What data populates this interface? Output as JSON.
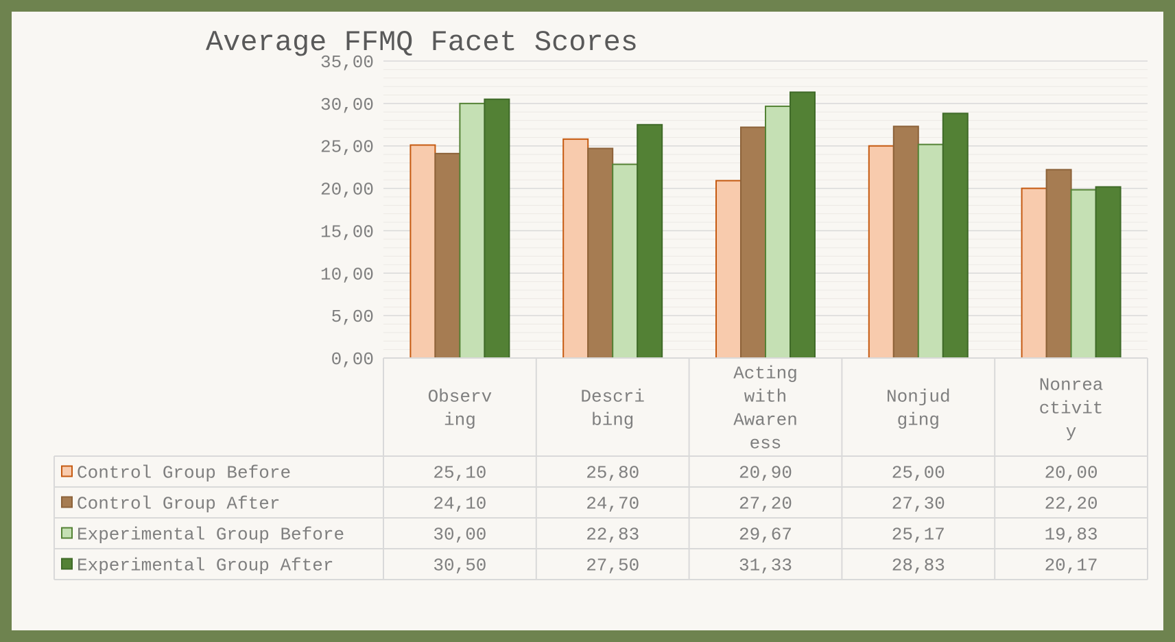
{
  "chart_data": {
    "type": "bar",
    "title": "Average FFMQ Facet Scores",
    "categories": [
      "Observing",
      "Describing",
      "Acting with Awareness",
      "Nonjudging",
      "Nonreactivity"
    ],
    "category_display": [
      [
        "Observ",
        "ing"
      ],
      [
        "Descri",
        "bing"
      ],
      [
        "Acting",
        "with",
        "Awaren",
        "ess"
      ],
      [
        "Nonjud",
        "ging"
      ],
      [
        "Nonrea",
        "ctivit",
        "y"
      ]
    ],
    "series": [
      {
        "name": "Control Group Before",
        "values": [
          25.1,
          25.8,
          20.9,
          25.0,
          20.0
        ],
        "display": [
          "25,10",
          "25,80",
          "20,90",
          "25,00",
          "20,00"
        ],
        "fill": "#f8cbad",
        "stroke": "#c55a11"
      },
      {
        "name": "Control Group After",
        "values": [
          24.1,
          24.7,
          27.2,
          27.3,
          22.2
        ],
        "display": [
          "24,10",
          "24,70",
          "27,20",
          "27,30",
          "22,20"
        ],
        "fill": "#a67c52",
        "stroke": "#8c6239"
      },
      {
        "name": "Experimental Group Before",
        "values": [
          30.0,
          22.83,
          29.67,
          25.17,
          19.83
        ],
        "display": [
          "30,00",
          "22,83",
          "29,67",
          "25,17",
          "19,83"
        ],
        "fill": "#c5e0b4",
        "stroke": "#548235"
      },
      {
        "name": "Experimental Group After",
        "values": [
          30.5,
          27.5,
          31.33,
          28.83,
          20.17
        ],
        "display": [
          "30,50",
          "27,50",
          "31,33",
          "28,83",
          "20,17"
        ],
        "fill": "#538135",
        "stroke": "#3f6a28"
      }
    ],
    "yticks": [
      "0,00",
      "5,00",
      "10,00",
      "15,00",
      "20,00",
      "25,00",
      "30,00",
      "35,00"
    ],
    "ylim": [
      0,
      35
    ],
    "grid": true,
    "legend": "data-table"
  }
}
